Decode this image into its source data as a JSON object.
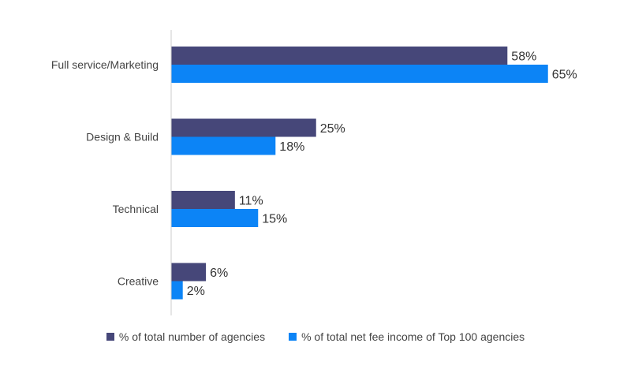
{
  "chart_data": {
    "type": "bar",
    "orientation": "horizontal",
    "categories": [
      "Full service/Marketing",
      "Design & Build",
      "Technical",
      "Creative"
    ],
    "series": [
      {
        "name": "% of total number of agencies",
        "values": [
          58,
          25,
          11,
          6
        ],
        "labels": [
          "58%",
          "25%",
          "11%",
          "6%"
        ],
        "color": "#464779"
      },
      {
        "name": "% of total net fee income of Top 100 agencies",
        "values": [
          65,
          18,
          15,
          2
        ],
        "labels": [
          "65%",
          "18%",
          "15%",
          "2%"
        ],
        "color": "#0C84F6"
      }
    ],
    "xlim": [
      0,
      70
    ],
    "grid": false,
    "legend_position": "bottom"
  }
}
